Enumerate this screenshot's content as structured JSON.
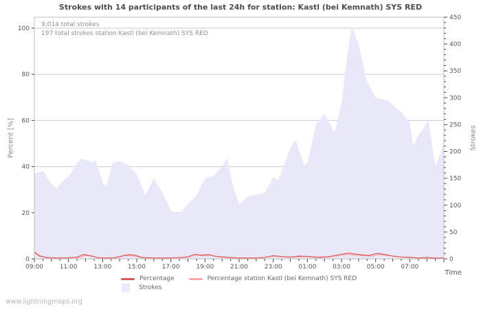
{
  "page": {
    "watermark": "www.lightningmaps.org"
  },
  "chart_data": {
    "type": "area",
    "title": "Strokes with 14 participants of the last 24h for station: Kastl (bei Kemnath) SYS RED",
    "annotations": [
      "9,014 total strokes",
      "197 total strokes station Kastl (bei Kemnath) SYS RED"
    ],
    "grid": "horizontal-only",
    "background": "#ffffff",
    "x_axis": {
      "label": "Time",
      "range": [
        0,
        24
      ],
      "unit": "hours-from-09:00",
      "tick_hours": [
        0,
        2,
        4,
        6,
        8,
        10,
        12,
        14,
        16,
        18,
        20,
        22
      ],
      "tick_labels": [
        "09:00",
        "11:00",
        "13:00",
        "15:00",
        "17:00",
        "19:00",
        "21:00",
        "23:00",
        "01:00",
        "03:00",
        "05:00",
        "07:00"
      ]
    },
    "y_left": {
      "label": "Percent  [%]",
      "range": [
        0,
        100
      ],
      "ticks": [
        0,
        20,
        40,
        60,
        80,
        100
      ]
    },
    "y_right": {
      "label": "Strokes",
      "range": [
        0,
        450
      ],
      "ticks": [
        0,
        50,
        100,
        150,
        200,
        250,
        300,
        350,
        400,
        450
      ],
      "minor_step": 10
    },
    "series": [
      {
        "name": "Strokes",
        "type": "area",
        "axis": "right",
        "color": "#e8e8f9",
        "points": [
          [
            0,
            158
          ],
          [
            0.5,
            164
          ],
          [
            1,
            140
          ],
          [
            1.3,
            131
          ],
          [
            1.7,
            146
          ],
          [
            2,
            153
          ],
          [
            2.4,
            173
          ],
          [
            2.7,
            186
          ],
          [
            3,
            185
          ],
          [
            3.3,
            180
          ],
          [
            3.6,
            183
          ],
          [
            4,
            143
          ],
          [
            4.2,
            134
          ],
          [
            4.6,
            179
          ],
          [
            5,
            182
          ],
          [
            5.5,
            175
          ],
          [
            6,
            158
          ],
          [
            6.5,
            118
          ],
          [
            7,
            150
          ],
          [
            7.5,
            124
          ],
          [
            8,
            90
          ],
          [
            8.5,
            83
          ],
          [
            9,
            103
          ],
          [
            9.5,
            118
          ],
          [
            10,
            150
          ],
          [
            10.5,
            155
          ],
          [
            11,
            172
          ],
          [
            11.3,
            188
          ],
          [
            11.6,
            140
          ],
          [
            12,
            102
          ],
          [
            12.5,
            115
          ],
          [
            13,
            120
          ],
          [
            13.5,
            123
          ],
          [
            14,
            152
          ],
          [
            14.3,
            147
          ],
          [
            15,
            205
          ],
          [
            15.3,
            222
          ],
          [
            15.8,
            175
          ],
          [
            16,
            178
          ],
          [
            16.5,
            250
          ],
          [
            17,
            270
          ],
          [
            17.6,
            235
          ],
          [
            18,
            290
          ],
          [
            18.3,
            370
          ],
          [
            18.6,
            433
          ],
          [
            19,
            400
          ],
          [
            19.5,
            330
          ],
          [
            20,
            300
          ],
          [
            20.7,
            295
          ],
          [
            21,
            287
          ],
          [
            21.5,
            273
          ],
          [
            22,
            255
          ],
          [
            22.2,
            210
          ],
          [
            22.5,
            230
          ],
          [
            23.1,
            258
          ],
          [
            23.5,
            172
          ],
          [
            24,
            215
          ]
        ]
      },
      {
        "name": "Percentage station Kastl (bei Kemnath) SYS RED",
        "type": "line",
        "axis": "left",
        "color": "#f8a8a8",
        "points": [
          [
            0,
            3.2
          ],
          [
            0.3,
            1.5
          ],
          [
            0.7,
            0.5
          ],
          [
            1.2,
            0.3
          ],
          [
            2,
            0.4
          ],
          [
            2.6,
            0.6
          ],
          [
            3,
            1.5
          ],
          [
            3.4,
            1
          ],
          [
            4,
            0.3
          ],
          [
            4.8,
            0.4
          ],
          [
            5.3,
            1.4
          ],
          [
            5.8,
            1.2
          ],
          [
            6.4,
            0.4
          ],
          [
            7.2,
            0.3
          ],
          [
            8,
            0.4
          ],
          [
            9,
            0.7
          ],
          [
            9.5,
            1.6
          ],
          [
            10,
            1.3
          ],
          [
            10.4,
            1.5
          ],
          [
            11,
            0.7
          ],
          [
            11.6,
            0.4
          ],
          [
            12.4,
            0.3
          ],
          [
            13.2,
            0.4
          ],
          [
            14,
            1.1
          ],
          [
            14.6,
            0.8
          ],
          [
            15.2,
            0.9
          ],
          [
            16,
            0.8
          ],
          [
            16.8,
            0.5
          ],
          [
            17.6,
            1.2
          ],
          [
            18.3,
            2
          ],
          [
            19,
            1.5
          ],
          [
            19.8,
            1.2
          ],
          [
            20.2,
            1.9
          ],
          [
            20.8,
            1.4
          ],
          [
            21.4,
            0.9
          ],
          [
            22,
            0.5
          ],
          [
            22.8,
            0.3
          ],
          [
            23.4,
            0.4
          ],
          [
            24,
            0.4
          ]
        ]
      },
      {
        "name": "Percentage",
        "type": "line",
        "axis": "left",
        "color": "#dd5a5a",
        "points": [
          [
            0,
            2.8
          ],
          [
            0.3,
            1.2
          ],
          [
            0.7,
            0.6
          ],
          [
            1,
            0.5
          ],
          [
            1.5,
            0.4
          ],
          [
            2,
            0.5
          ],
          [
            2.5,
            0.8
          ],
          [
            2.9,
            1.9
          ],
          [
            3.3,
            1.4
          ],
          [
            3.7,
            0.5
          ],
          [
            4.2,
            0.4
          ],
          [
            4.7,
            0.5
          ],
          [
            5.1,
            1.2
          ],
          [
            5.5,
            1.8
          ],
          [
            5.9,
            1.6
          ],
          [
            6.3,
            0.6
          ],
          [
            7,
            0.4
          ],
          [
            7.7,
            0.4
          ],
          [
            8.4,
            0.5
          ],
          [
            9,
            0.9
          ],
          [
            9.4,
            2
          ],
          [
            9.8,
            1.6
          ],
          [
            10.2,
            1.9
          ],
          [
            10.6,
            1.1
          ],
          [
            11,
            0.9
          ],
          [
            11.5,
            0.6
          ],
          [
            12,
            0.4
          ],
          [
            12.7,
            0.4
          ],
          [
            13.4,
            0.5
          ],
          [
            14,
            1.4
          ],
          [
            14.4,
            1.1
          ],
          [
            15,
            0.7
          ],
          [
            15.5,
            1.2
          ],
          [
            16,
            1.1
          ],
          [
            16.6,
            0.7
          ],
          [
            17.2,
            0.9
          ],
          [
            17.8,
            1.7
          ],
          [
            18.4,
            2.5
          ],
          [
            19,
            1.9
          ],
          [
            19.6,
            1.5
          ],
          [
            20.1,
            2.4
          ],
          [
            20.6,
            1.8
          ],
          [
            21,
            1.2
          ],
          [
            21.5,
            0.8
          ],
          [
            22,
            0.7
          ],
          [
            22.5,
            0.4
          ],
          [
            23,
            0.6
          ],
          [
            23.5,
            0.3
          ],
          [
            24,
            0.5
          ]
        ]
      }
    ],
    "legend": [
      {
        "label": "Percentage",
        "swatch": "line",
        "color": "#dd5a5a"
      },
      {
        "label": "Percentage station Kastl (bei Kemnath) SYS RED",
        "swatch": "line",
        "color": "#f8a8a8"
      },
      {
        "label": "Strokes",
        "swatch": "area",
        "color": "#e9e9fb"
      }
    ],
    "legend_position": "bottom-left"
  }
}
